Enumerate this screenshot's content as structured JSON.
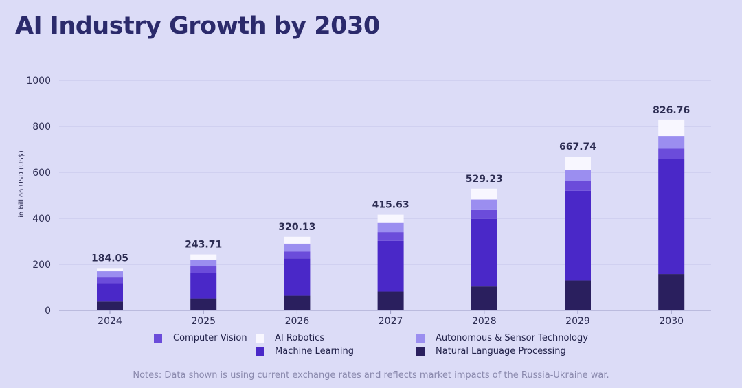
{
  "chart_data": {
    "type": "bar",
    "stacked": true,
    "title": "AI Industry Growth by 2030",
    "xlabel": "",
    "ylabel": "in billion USD (US$)",
    "ylim": [
      0,
      1000
    ],
    "yticks": [
      0,
      200,
      400,
      600,
      800,
      1000
    ],
    "grid": true,
    "categories": [
      "2024",
      "2025",
      "2026",
      "2027",
      "2028",
      "2029",
      "2030"
    ],
    "totals": [
      "184.05",
      "243.71",
      "320.13",
      "415.63",
      "529.23",
      "667.74",
      "826.76"
    ],
    "series": [
      {
        "name": "Natural Language Processing",
        "color": "#2a1f5e",
        "values": [
          38,
          52,
          64,
          82,
          104,
          130,
          158
        ]
      },
      {
        "name": "Machine Learning",
        "color": "#4a28c8",
        "values": [
          80,
          110,
          162,
          220,
          294,
          390,
          500
        ]
      },
      {
        "name": "Computer Vision",
        "color": "#6b4cda",
        "values": [
          25,
          29,
          30,
          38,
          38,
          44,
          45
        ]
      },
      {
        "name": "Autonomous & Sensor Technology",
        "color": "#9b8ef0",
        "values": [
          27,
          30,
          34,
          40,
          46,
          46,
          55
        ]
      },
      {
        "name": "AI Robotics",
        "color": "#f8f7ff",
        "values": [
          14,
          22,
          30,
          36,
          47,
          58,
          69
        ]
      }
    ],
    "legend_position": "bottom",
    "legend": [
      {
        "name": "Computer Vision",
        "color": "#6b4cda"
      },
      {
        "name": "AI Robotics",
        "color": "#f8f7ff"
      },
      {
        "name": "Autonomous & Sensor Technology",
        "color": "#9b8ef0"
      },
      {
        "name": "Machine Learning",
        "color": "#4a28c8"
      },
      {
        "name": "Natural Language Processing",
        "color": "#2a1f5e"
      }
    ]
  },
  "notes": "Notes: Data shown is using current exchange rates and reflects market impacts of the Russia-Ukraine war."
}
